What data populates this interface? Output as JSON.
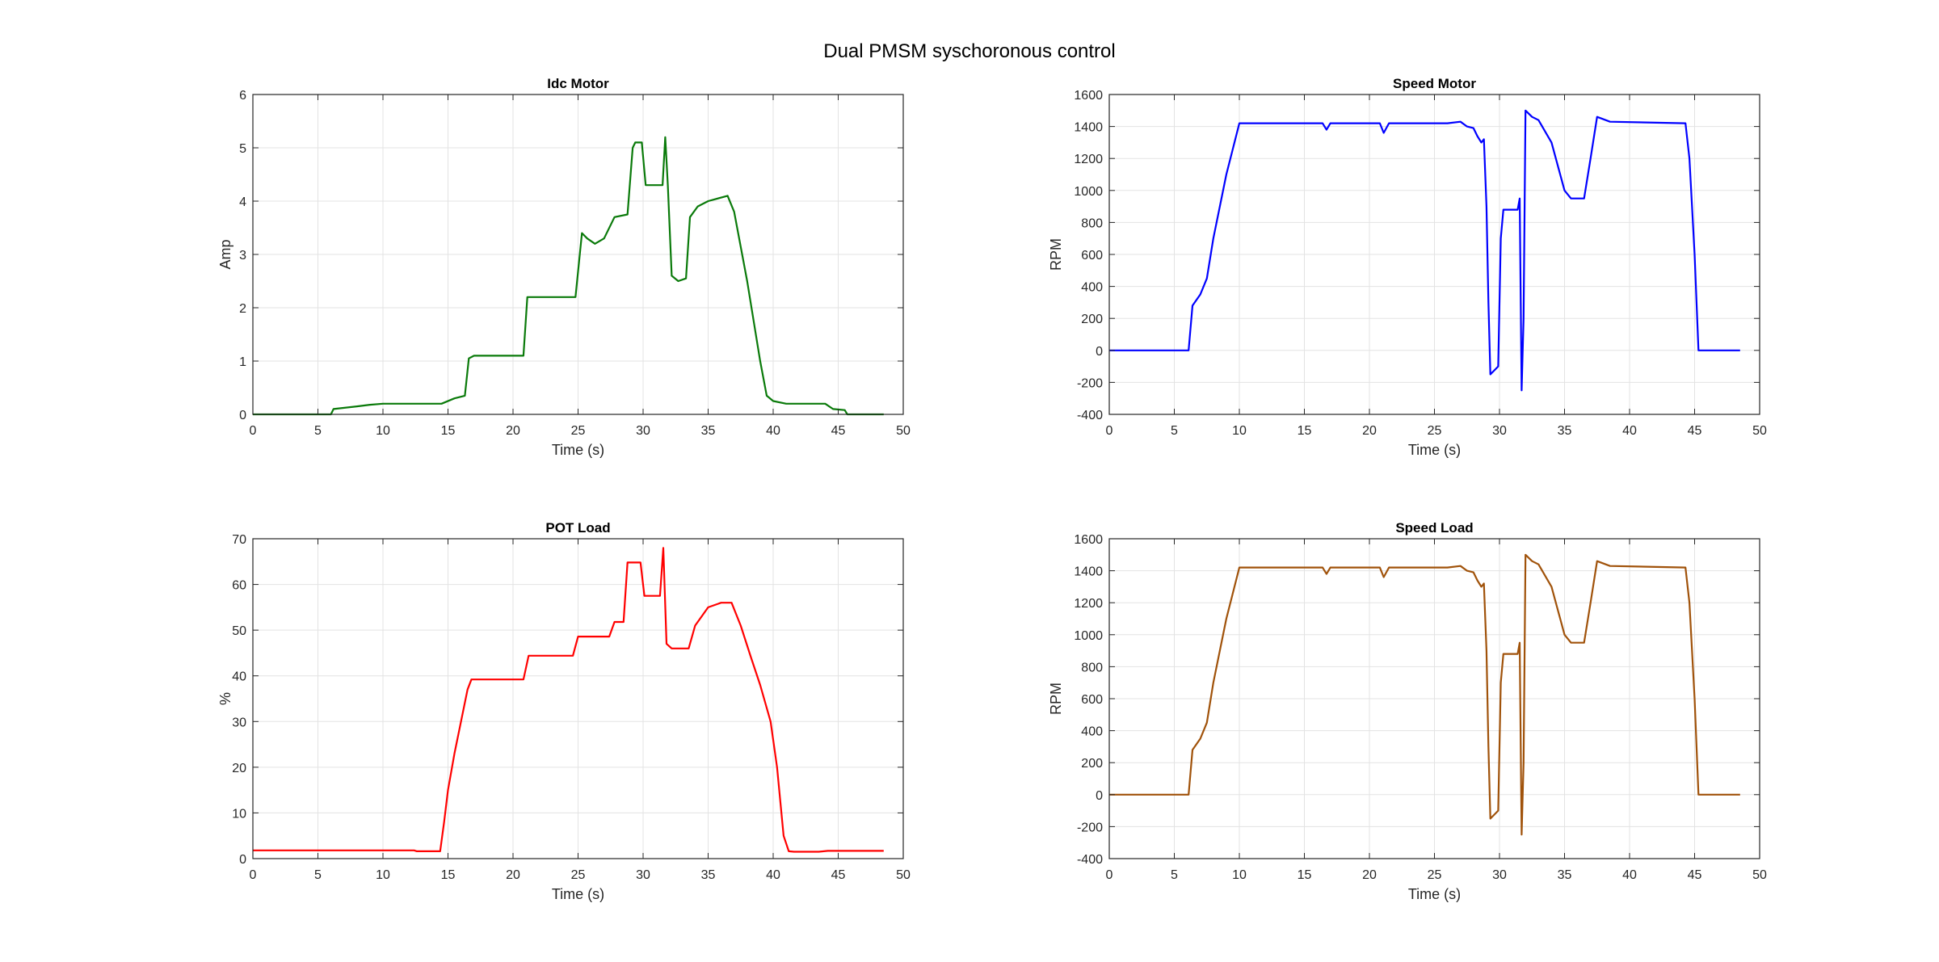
{
  "figure": {
    "title": "Dual PMSM syschoronous control"
  },
  "chart_data": [
    {
      "id": "idc",
      "type": "line",
      "title": "Idc Motor",
      "xlabel": "Time (s)",
      "ylabel": "Amp",
      "xlim": [
        0,
        50
      ],
      "ylim": [
        0,
        6
      ],
      "xticks": [
        0,
        5,
        10,
        15,
        20,
        25,
        30,
        35,
        40,
        45,
        50
      ],
      "yticks": [
        0,
        1,
        2,
        3,
        4,
        5,
        6
      ],
      "grid": true,
      "color": "#0a7a0a",
      "series": [
        {
          "name": "Idc",
          "x": [
            0,
            6,
            6.2,
            8,
            9,
            10,
            14.5,
            15.5,
            16.3,
            16.6,
            17,
            20.8,
            21.1,
            21.5,
            24.8,
            25.3,
            25.7,
            26.3,
            27,
            27.8,
            28.8,
            29.2,
            29.4,
            29.9,
            30.2,
            30.6,
            31.5,
            31.7,
            31.9,
            32.2,
            32.7,
            33.3,
            33.6,
            34.2,
            35,
            36.5,
            37,
            38,
            39,
            39.5,
            40,
            41,
            44,
            44.6,
            45.5,
            45.7,
            48.5
          ],
          "y": [
            0,
            0,
            0.1,
            0.15,
            0.18,
            0.2,
            0.2,
            0.3,
            0.35,
            1.05,
            1.1,
            1.1,
            2.2,
            2.2,
            2.2,
            3.4,
            3.3,
            3.2,
            3.3,
            3.7,
            3.75,
            5.0,
            5.1,
            5.1,
            4.3,
            4.3,
            4.3,
            5.2,
            4.3,
            2.6,
            2.5,
            2.55,
            3.7,
            3.9,
            4.0,
            4.1,
            3.8,
            2.5,
            1.0,
            0.35,
            0.25,
            0.2,
            0.2,
            0.1,
            0.08,
            0,
            0
          ]
        }
      ]
    },
    {
      "id": "speed-motor",
      "type": "line",
      "title": "Speed Motor",
      "xlabel": "Time (s)",
      "ylabel": "RPM",
      "xlim": [
        0,
        50
      ],
      "ylim": [
        -400,
        1600
      ],
      "xticks": [
        0,
        5,
        10,
        15,
        20,
        25,
        30,
        35,
        40,
        45,
        50
      ],
      "yticks": [
        -400,
        -200,
        0,
        200,
        400,
        600,
        800,
        1000,
        1200,
        1400,
        1600
      ],
      "grid": true,
      "color": "#0000ff",
      "series": [
        {
          "name": "Speed Motor",
          "x": [
            0,
            6.1,
            6.4,
            7.0,
            7.5,
            8.0,
            9.0,
            10.0,
            16.4,
            16.7,
            17.0,
            20.8,
            21.1,
            21.5,
            25.0,
            26.0,
            27.0,
            27.5,
            28.0,
            28.3,
            28.6,
            28.8,
            29.0,
            29.15,
            29.3,
            29.9,
            30.1,
            30.3,
            31.4,
            31.55,
            31.7,
            31.85,
            32.0,
            32.5,
            33.0,
            34.0,
            35.0,
            35.5,
            36.5,
            37.0,
            37.5,
            38.5,
            44.3,
            44.6,
            45.0,
            45.3,
            48.5
          ],
          "y": [
            0,
            0,
            280,
            350,
            450,
            700,
            1100,
            1420,
            1420,
            1380,
            1420,
            1420,
            1360,
            1420,
            1420,
            1420,
            1430,
            1400,
            1390,
            1340,
            1300,
            1320,
            900,
            300,
            -150,
            -100,
            700,
            880,
            880,
            950,
            -250,
            200,
            1500,
            1460,
            1440,
            1300,
            1000,
            950,
            950,
            1200,
            1460,
            1430,
            1420,
            1200,
            600,
            0,
            0
          ]
        }
      ]
    },
    {
      "id": "pot",
      "type": "line",
      "title": "POT Load",
      "xlabel": "Time (s)",
      "ylabel": "%",
      "xlim": [
        0,
        50
      ],
      "ylim": [
        0,
        70
      ],
      "xticks": [
        0,
        5,
        10,
        15,
        20,
        25,
        30,
        35,
        40,
        45,
        50
      ],
      "yticks": [
        0,
        10,
        20,
        30,
        40,
        50,
        60,
        70
      ],
      "grid": true,
      "color": "#ff0000",
      "series": [
        {
          "name": "POT",
          "x": [
            0,
            12.4,
            12.6,
            14.4,
            14.7,
            15.0,
            15.5,
            16.0,
            16.5,
            16.8,
            20.8,
            21.2,
            24.6,
            25.0,
            27.4,
            27.8,
            28.5,
            28.8,
            29.3,
            29.8,
            30.1,
            31.3,
            31.55,
            31.8,
            32.2,
            33.5,
            34.0,
            35.0,
            36.0,
            36.8,
            37.5,
            38.3,
            39.0,
            39.8,
            40.3,
            40.8,
            41.2,
            41.6,
            43.5,
            44.2,
            48.5
          ],
          "y": [
            1.8,
            1.8,
            1.6,
            1.6,
            8,
            15,
            23,
            30,
            37,
            39.2,
            39.2,
            44.4,
            44.4,
            48.6,
            48.6,
            51.8,
            51.8,
            64.8,
            64.8,
            64.8,
            57.5,
            57.5,
            68,
            47,
            46,
            46,
            51,
            55,
            56,
            56,
            51,
            44,
            38,
            30,
            20,
            5,
            1.6,
            1.5,
            1.5,
            1.7,
            1.7
          ]
        }
      ]
    },
    {
      "id": "speed-load",
      "type": "line",
      "title": "Speed Load",
      "xlabel": "Time (s)",
      "ylabel": "RPM",
      "xlim": [
        0,
        50
      ],
      "ylim": [
        -400,
        1600
      ],
      "xticks": [
        0,
        5,
        10,
        15,
        20,
        25,
        30,
        35,
        40,
        45,
        50
      ],
      "yticks": [
        -400,
        -200,
        0,
        200,
        400,
        600,
        800,
        1000,
        1200,
        1400,
        1600
      ],
      "grid": true,
      "color": "#a0520a",
      "series": [
        {
          "name": "Speed Load",
          "x": [
            0,
            6.1,
            6.4,
            7.0,
            7.5,
            8.0,
            9.0,
            10.0,
            16.4,
            16.7,
            17.0,
            20.8,
            21.1,
            21.5,
            25.0,
            26.0,
            27.0,
            27.5,
            28.0,
            28.3,
            28.6,
            28.8,
            29.0,
            29.15,
            29.3,
            29.9,
            30.1,
            30.3,
            31.4,
            31.55,
            31.7,
            31.85,
            32.0,
            32.5,
            33.0,
            34.0,
            35.0,
            35.5,
            36.5,
            37.0,
            37.5,
            38.5,
            44.3,
            44.6,
            45.0,
            45.3,
            48.5
          ],
          "y": [
            0,
            0,
            280,
            350,
            450,
            700,
            1100,
            1420,
            1420,
            1380,
            1420,
            1420,
            1360,
            1420,
            1420,
            1420,
            1430,
            1400,
            1390,
            1340,
            1300,
            1320,
            900,
            300,
            -150,
            -100,
            700,
            880,
            880,
            950,
            -250,
            200,
            1500,
            1460,
            1440,
            1300,
            1000,
            950,
            950,
            1200,
            1460,
            1430,
            1420,
            1200,
            600,
            0,
            0
          ]
        }
      ]
    }
  ]
}
